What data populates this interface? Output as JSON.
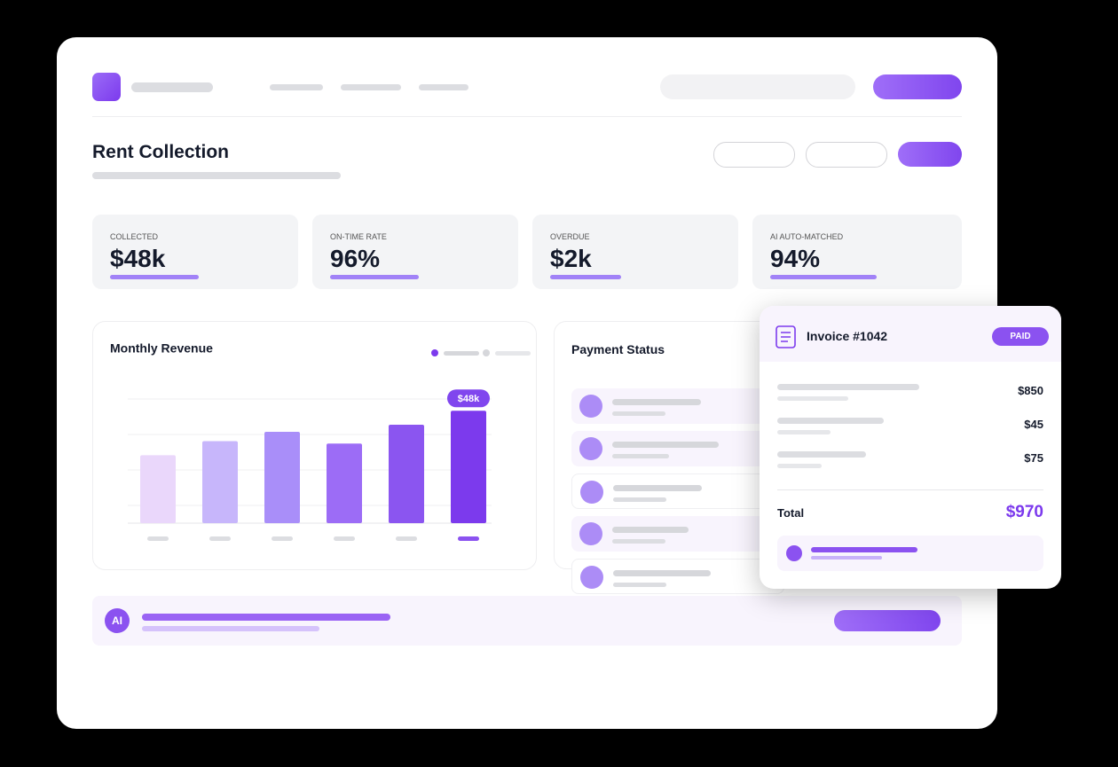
{
  "header": {
    "title": "Rent Collection"
  },
  "kpis": [
    {
      "label": "COLLECTED",
      "value": "$48k"
    },
    {
      "label": "ON-TIME RATE",
      "value": "96%"
    },
    {
      "label": "OVERDUE",
      "value": "$2k"
    },
    {
      "label": "AI AUTO-MATCHED",
      "value": "94%"
    }
  ],
  "chart_data": {
    "type": "bar",
    "title": "Monthly Revenue",
    "categories": [
      null,
      null,
      null,
      null,
      null,
      null
    ],
    "values": [
      29,
      35,
      39,
      34,
      42,
      48
    ],
    "value_labels": [
      null,
      null,
      null,
      null,
      null,
      "$48k"
    ],
    "colors": [
      "#ead7fb",
      "#c7b6fb",
      "#a98ef9",
      "#9c6cf6",
      "#8b55f0",
      "#7c3aed"
    ],
    "ylim": [
      0,
      53
    ]
  },
  "payment_status": {
    "title": "Payment Status"
  },
  "invoice": {
    "title": "Invoice #1042",
    "status": "PAID",
    "lines": [
      "$850",
      "$45",
      "$75"
    ],
    "total_label": "Total",
    "total": "$970"
  },
  "ai_banner": {
    "icon": "AI"
  }
}
